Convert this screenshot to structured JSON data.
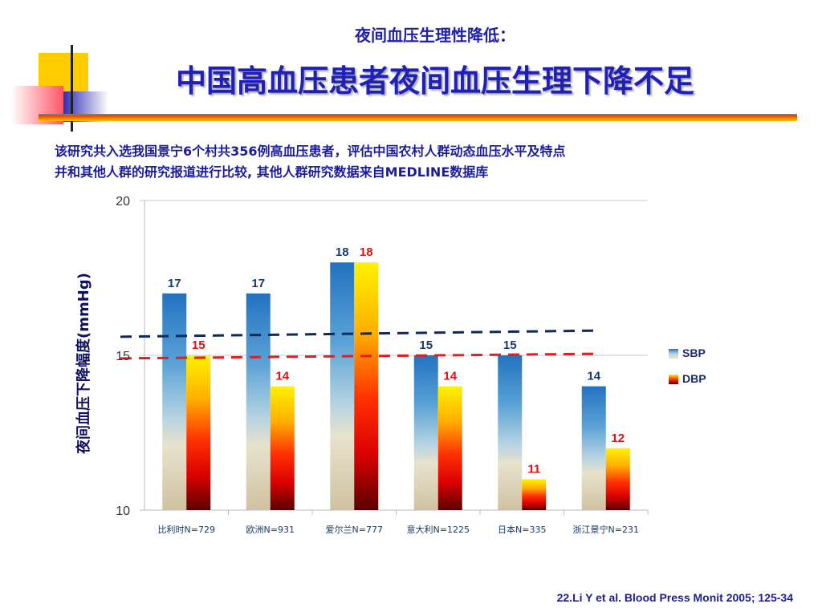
{
  "slide": {
    "subtitle": "夜间血压生理性降低：",
    "title": "中国高血压患者夜间血压生理下降不足",
    "description_line1": "该研究共入选我国景宁6个村共356例高血压患者，评估中国农村人群动态血压水平及特点",
    "description_line2": "并和其他人群的研究报道进行比较, 其他人群研究数据来自MEDLINE数据库",
    "citation": "22.Li Y et al. Blood Press Monit 2005; 125-34"
  },
  "colors": {
    "title": "#2020b8",
    "text": "#1c1c9a",
    "sbp_label": "#1a3a6a",
    "dbp_label": "#e01010",
    "reference_sbp": "#0f2a5a",
    "reference_dbp": "#e02020"
  },
  "chart_data": {
    "type": "bar",
    "ylabel": "夜间血压下降幅度(mmHg)",
    "ylim": [
      10,
      20
    ],
    "yticks": [
      10,
      15,
      20
    ],
    "grid": true,
    "legend_position": "right",
    "categories": [
      "比利时N=729",
      "欧洲N=931",
      "爱尔兰N=777",
      "意大利N=1225",
      "日本N=335",
      "浙江景宁N=231"
    ],
    "series": [
      {
        "name": "SBP",
        "values": [
          17,
          17,
          18,
          15,
          15,
          14
        ]
      },
      {
        "name": "DBP",
        "values": [
          15,
          14,
          18,
          14,
          11,
          12
        ]
      }
    ],
    "reference_lines": [
      {
        "series": "SBP",
        "style": "dashed",
        "from": 15.6,
        "to": 15.8
      },
      {
        "series": "DBP",
        "style": "dashed",
        "from": 14.9,
        "to": 15.05
      }
    ]
  }
}
